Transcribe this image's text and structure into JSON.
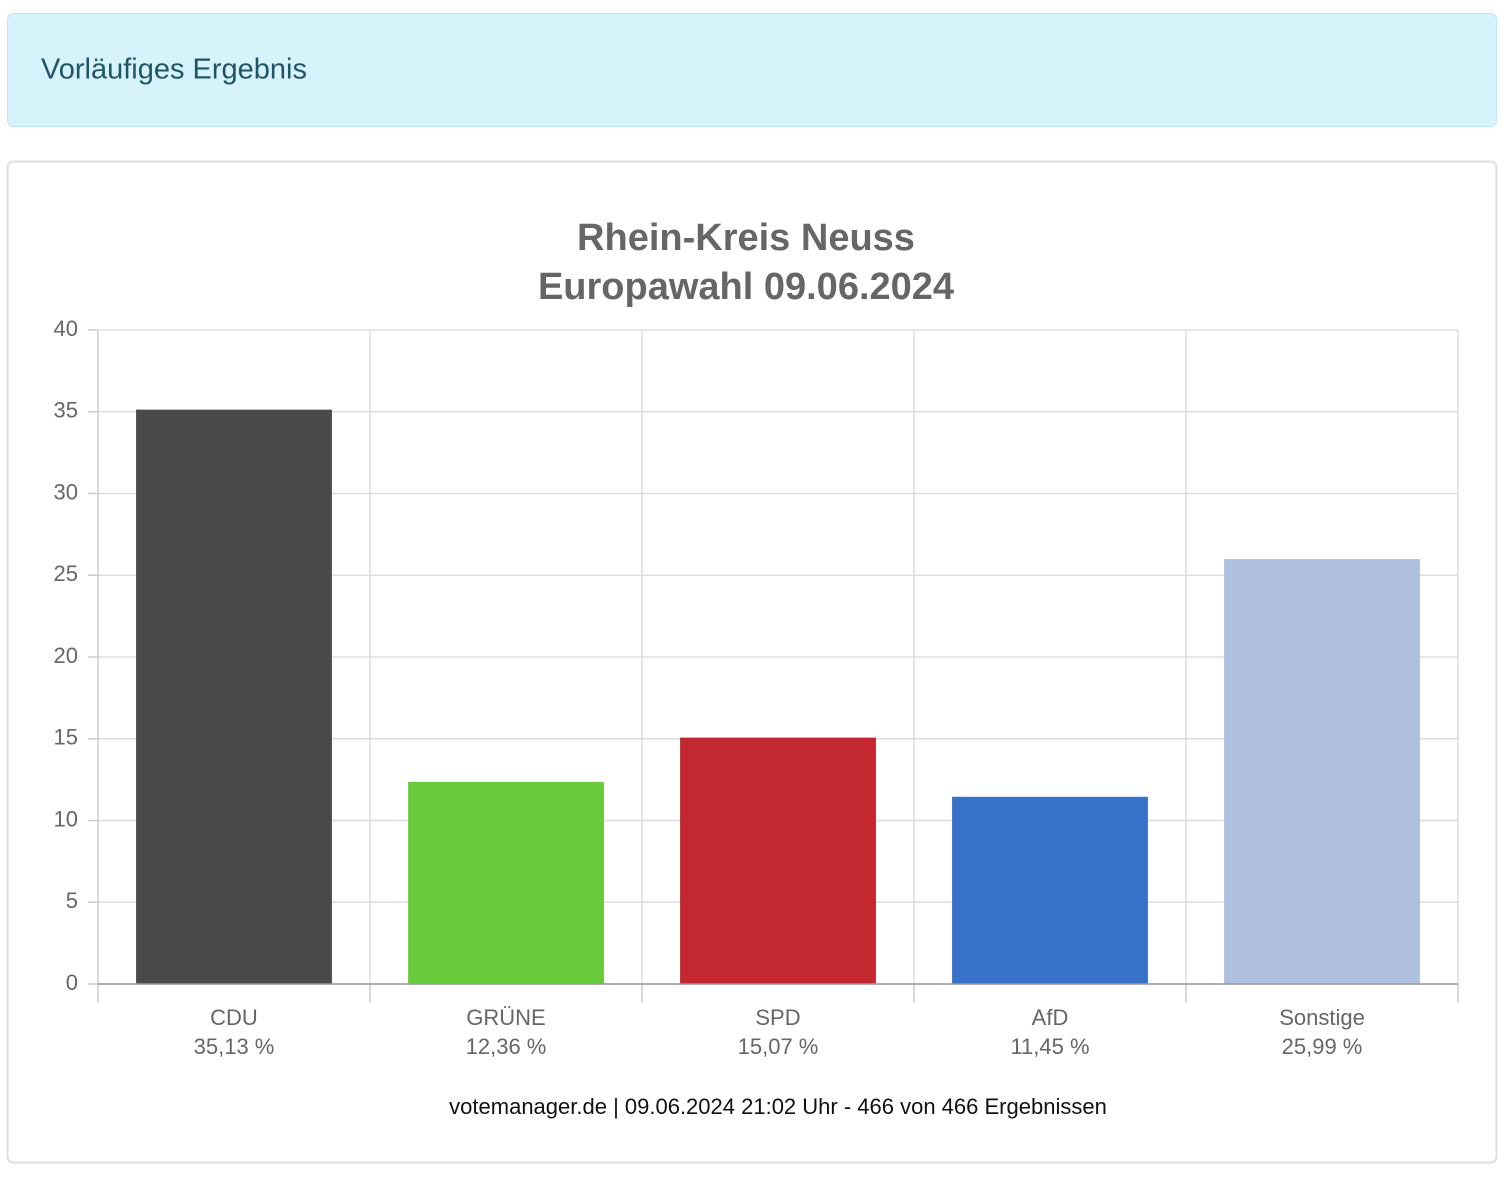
{
  "header": {
    "title": "Vorläufiges Ergebnis"
  },
  "chart_data": {
    "type": "bar",
    "title": "Rhein-Kreis Neuss",
    "subtitle": "Europawahl 09.06.2024",
    "categories": [
      "CDU",
      "GRÜNE",
      "SPD",
      "AfD",
      "Sonstige"
    ],
    "values": [
      35.13,
      12.36,
      15.07,
      11.45,
      25.99
    ],
    "value_labels": [
      "35,13 %",
      "12,36 %",
      "15,07 %",
      "11,45 %",
      "25,99 %"
    ],
    "colors": [
      "#4a4a4a",
      "#69cb3c",
      "#c3272f",
      "#3771c8",
      "#aebfe0"
    ],
    "ylim": [
      0,
      40
    ],
    "yticks": [
      0,
      5,
      10,
      15,
      20,
      25,
      30,
      35,
      40
    ],
    "grid": true,
    "footer": "votemanager.de | 09.06.2024 21:02 Uhr - 466 von 466 Ergebnissen"
  }
}
